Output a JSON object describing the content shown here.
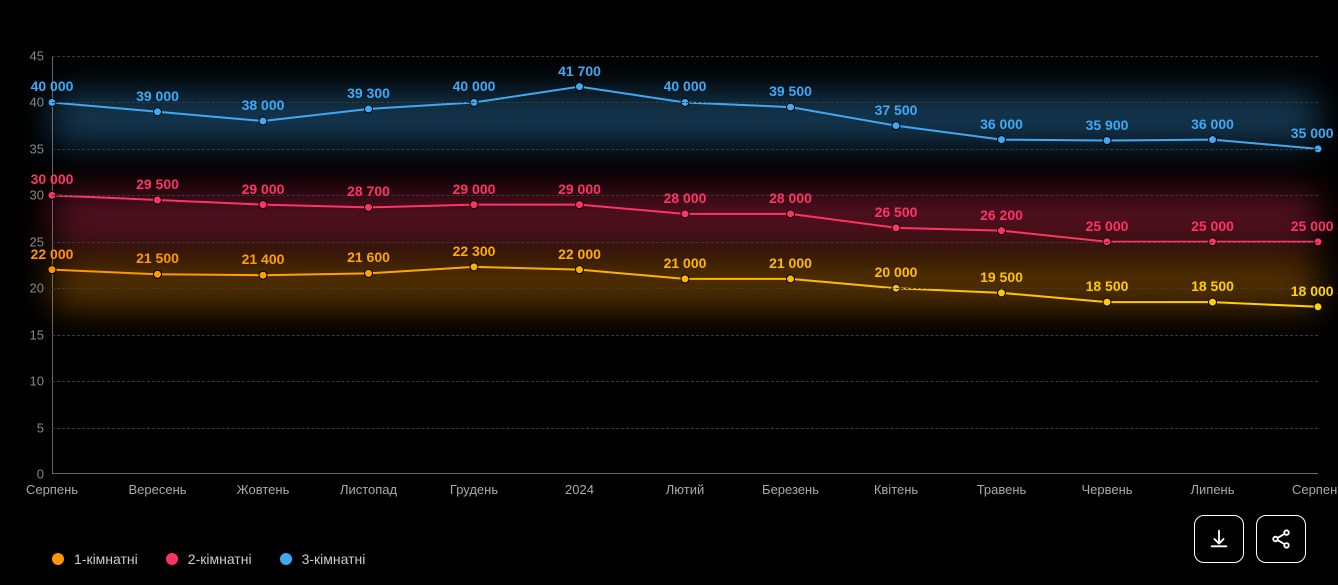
{
  "chart": {
    "type": "line",
    "background_color": "#000000",
    "grid_color": "#3a3a3a",
    "axis_color": "#666666",
    "ylim": [
      0,
      45
    ],
    "ytick_step": 5,
    "yticks": [
      0,
      5,
      10,
      15,
      20,
      25,
      30,
      35,
      40,
      45
    ],
    "y_divisor": 1000,
    "categories": [
      "Серпень",
      "Вересень",
      "Жовтень",
      "Листопад",
      "Грудень",
      "2024",
      "Лютий",
      "Березень",
      "Квітень",
      "Травень",
      "Червень",
      "Липень",
      "Серпень"
    ],
    "label_fontsize": 14,
    "axis_label_color": "#888888",
    "series": [
      {
        "key": "three_room",
        "name": "3-кімнатні",
        "color": "#3fa9f5",
        "line_width": 2,
        "marker": "circle",
        "marker_size": 4,
        "values": [
          40000,
          39000,
          38000,
          39300,
          40000,
          41700,
          40000,
          39500,
          37500,
          36000,
          35900,
          36000,
          35000
        ],
        "last_suffix": " $"
      },
      {
        "key": "two_room",
        "name": "2-кімнатні",
        "color": "#ff3366",
        "line_width": 2,
        "marker": "circle",
        "marker_size": 4,
        "values": [
          30000,
          29500,
          29000,
          28700,
          29000,
          29000,
          28000,
          28000,
          26500,
          26200,
          25000,
          25000,
          25000
        ],
        "last_suffix": " $"
      },
      {
        "key": "one_room",
        "name": "1-кімнатні",
        "color": "#ff9500",
        "line_width": 2,
        "marker": "circle",
        "marker_size": 4,
        "gradient_end": "#ffd400",
        "values": [
          22000,
          21500,
          21400,
          21600,
          22300,
          22000,
          21000,
          21000,
          20000,
          19500,
          18500,
          18500,
          18000
        ],
        "last_suffix": " $"
      }
    ]
  },
  "legend": {
    "order": [
      "one_room",
      "two_room",
      "three_room"
    ]
  },
  "actions": {
    "download": "download-icon",
    "share": "share-icon"
  }
}
